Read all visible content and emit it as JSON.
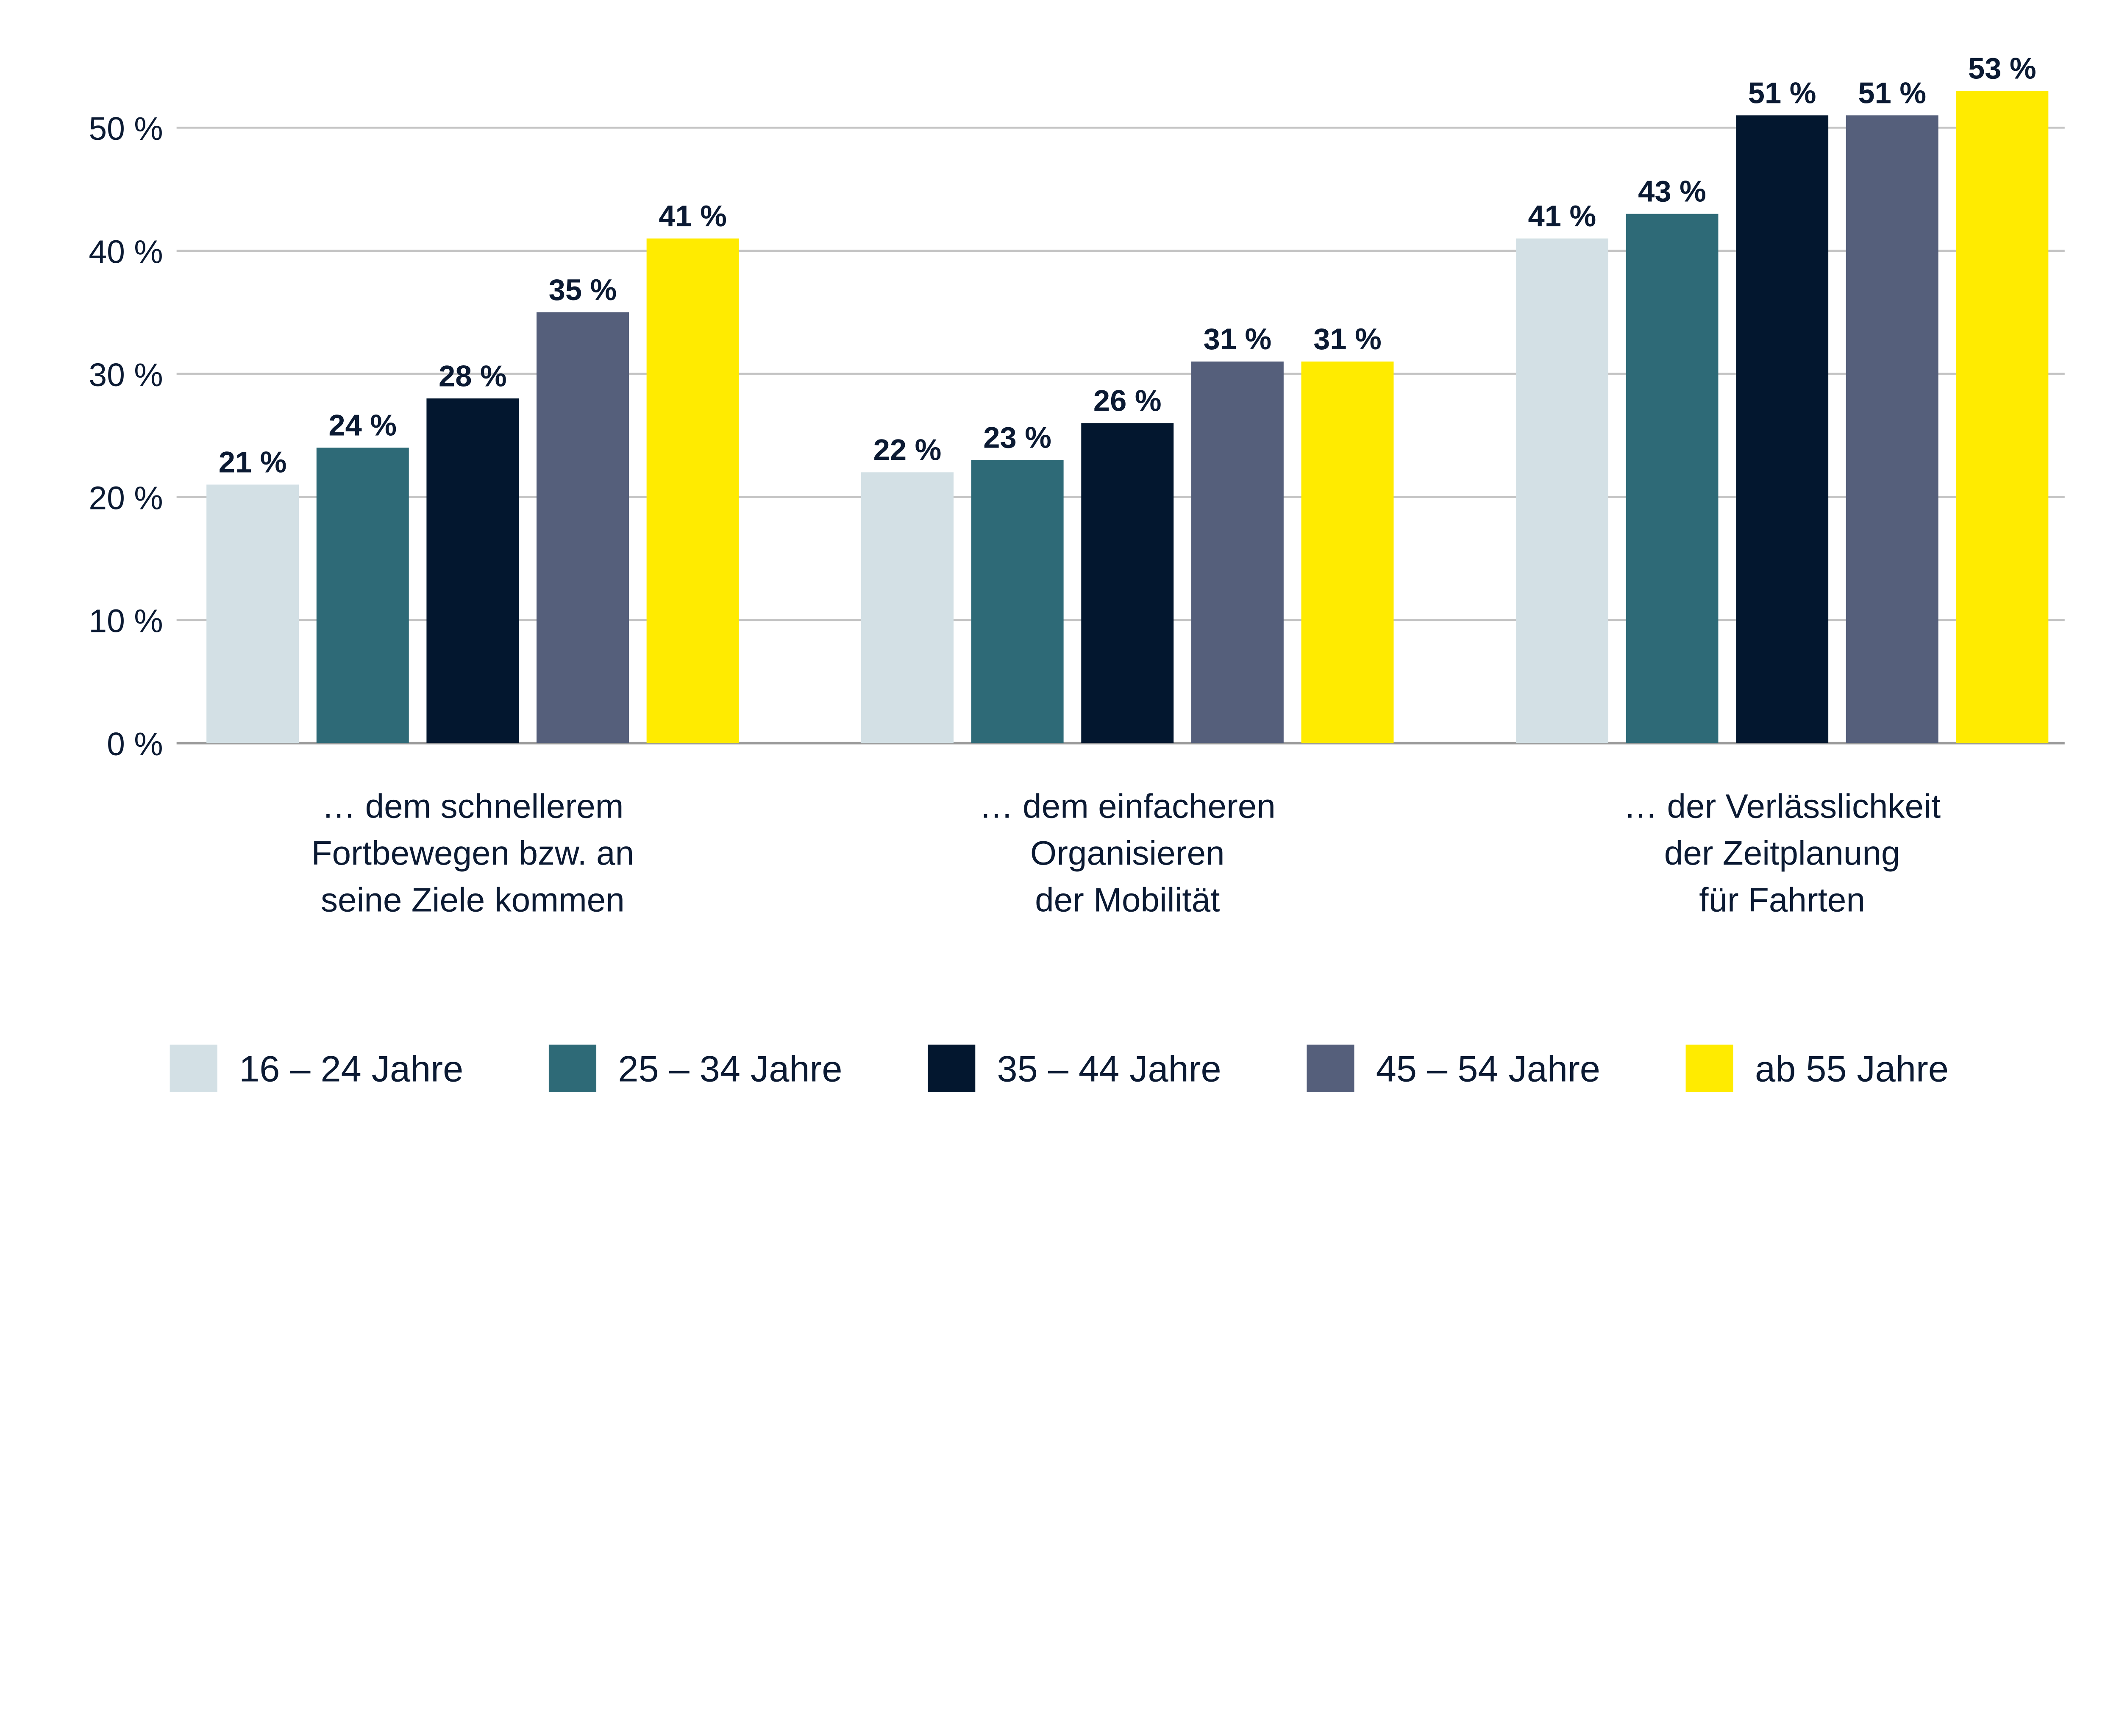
{
  "chart_data": {
    "type": "bar",
    "title": "",
    "xlabel": "",
    "ylabel": "",
    "ylim": [
      0,
      50
    ],
    "grid": true,
    "legend_position": "bottom",
    "y_ticks": [
      0,
      10,
      20,
      30,
      40,
      50
    ],
    "y_tick_labels": [
      "0 %",
      "10 %",
      "20 %",
      "30 %",
      "40 %",
      "50 %"
    ],
    "categories": [
      [
        "… dem schnellerem",
        "Fortbewegen bzw. an",
        "seine Ziele kommen"
      ],
      [
        "… dem einfacheren",
        "Organisieren",
        "der Mobilität"
      ],
      [
        "… der Verlässlichkeit",
        "der Zeitplanung",
        "für Fahrten"
      ]
    ],
    "series": [
      {
        "name": "16 – 24 Jahre",
        "color": "#d3e0e5",
        "values": [
          21,
          22,
          41
        ],
        "labels": [
          "21 %",
          "22 %",
          "41 %"
        ]
      },
      {
        "name": "25 – 34 Jahre",
        "color": "#2e6a77",
        "values": [
          24,
          23,
          43
        ],
        "labels": [
          "24 %",
          "23 %",
          "43 %"
        ]
      },
      {
        "name": "35 – 44 Jahre",
        "color": "#03172f",
        "values": [
          28,
          26,
          51
        ],
        "labels": [
          "28 %",
          "26 %",
          "51 %"
        ]
      },
      {
        "name": "45 – 54 Jahre",
        "color": "#555f7b",
        "values": [
          35,
          31,
          51
        ],
        "labels": [
          "35 %",
          "31 %",
          "51 %"
        ]
      },
      {
        "name": "ab 55 Jahre",
        "color": "#ffeb00",
        "values": [
          41,
          31,
          53
        ],
        "labels": [
          "41 %",
          "31 %",
          "53 %"
        ]
      }
    ]
  }
}
